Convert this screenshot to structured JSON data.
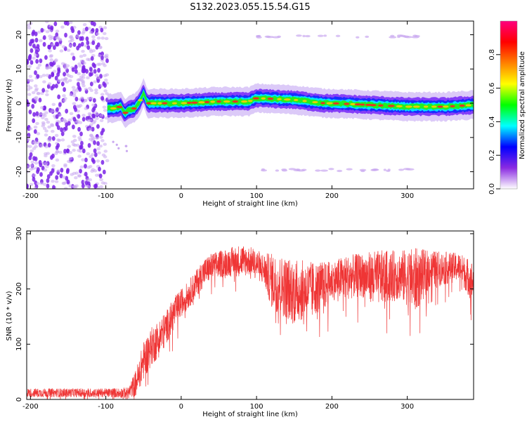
{
  "title": "S132.2023.055.15.54.G15",
  "colors": {
    "scatter_purple": "#7a22e8",
    "noise_purple": "#c9a8f0",
    "snr_line": "#ef3535"
  },
  "chart_data": [
    {
      "type": "heatmap",
      "xlabel": "Height of straight line (km)",
      "ylabel": "Frequency (Hz)",
      "xlim": [
        -205,
        388
      ],
      "ylim": [
        -25,
        24
      ],
      "xticks": [
        -200,
        -100,
        0,
        100,
        200,
        300
      ],
      "yticks": [
        20,
        10,
        0,
        -10,
        -20
      ],
      "colorbar": {
        "label": "Normalized spectral amplitude",
        "range": [
          0.0,
          1.0
        ],
        "ticks": [
          0.0,
          0.2,
          0.4,
          0.6,
          0.8
        ],
        "colormap": [
          "#ffffff",
          "#8a2be2",
          "#0000ff",
          "#00ffff",
          "#00ff00",
          "#ffff00",
          "#ff8000",
          "#ff0000",
          "#ff007f"
        ]
      },
      "noise_region_x": [
        -205,
        -98
      ],
      "ridge_x": [
        -98,
        -90,
        -80,
        -75,
        -70,
        -62,
        -55,
        -50,
        -45,
        -30,
        0,
        50,
        90,
        100,
        150,
        190,
        200,
        250,
        300,
        350,
        388
      ],
      "ridge_y": [
        -1.5,
        -1.5,
        -1.0,
        -3.0,
        -2.0,
        -1.5,
        0.5,
        3.0,
        0.0,
        0.0,
        0.0,
        0.5,
        0.5,
        1.5,
        1.0,
        0.0,
        0.0,
        -0.5,
        -1.0,
        -1.0,
        -0.5
      ],
      "faint_bands_y": [
        19.5,
        -19.5
      ],
      "faint_bands_x": [
        90,
        320
      ]
    },
    {
      "type": "line",
      "xlabel": "Height of straight line (km)",
      "ylabel": "SNR (10 * v/v)",
      "xlim": [
        -205,
        388
      ],
      "ylim": [
        0,
        305
      ],
      "xticks": [
        -200,
        -100,
        0,
        100,
        200,
        300
      ],
      "yticks": [
        0,
        100,
        200,
        300
      ],
      "envelope_x": [
        -205,
        -100,
        -70,
        -60,
        -50,
        -40,
        -30,
        -20,
        -10,
        0,
        10,
        20,
        30,
        40,
        60,
        80,
        95,
        110,
        120,
        150,
        170,
        190,
        200,
        215,
        240,
        260,
        290,
        310,
        330,
        370,
        388
      ],
      "envelope_center": [
        12,
        12,
        12,
        30,
        70,
        95,
        110,
        130,
        155,
        175,
        190,
        210,
        230,
        240,
        248,
        252,
        250,
        235,
        215,
        195,
        200,
        205,
        215,
        220,
        225,
        220,
        225,
        215,
        235,
        240,
        210
      ],
      "envelope_spread": [
        8,
        8,
        10,
        25,
        35,
        35,
        35,
        30,
        30,
        25,
        25,
        25,
        25,
        25,
        25,
        30,
        25,
        30,
        50,
        60,
        50,
        45,
        35,
        40,
        40,
        50,
        45,
        60,
        35,
        25,
        40
      ]
    }
  ]
}
